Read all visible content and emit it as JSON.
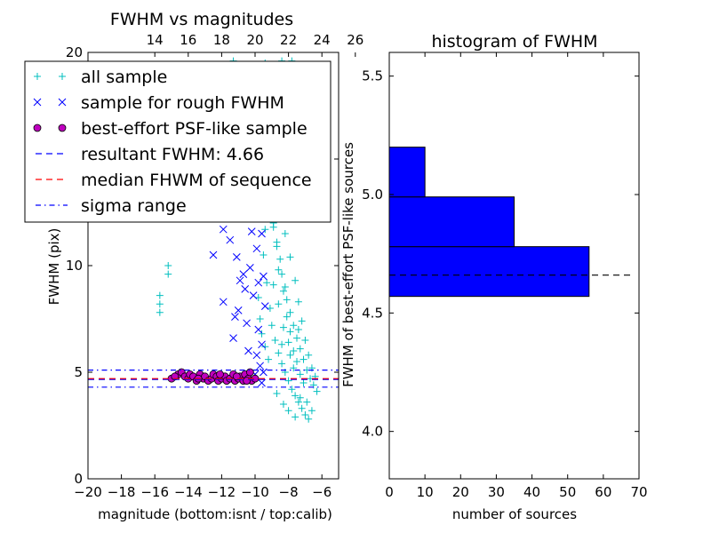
{
  "chart_data": [
    {
      "type": "scatter",
      "title": "FWHM vs magnitudes",
      "xlabel": "magnitude (bottom:isnt / top:calib)",
      "ylabel": "FWHM (pix)",
      "xlim": [
        -20,
        -5
      ],
      "ylim": [
        0,
        20
      ],
      "x_ticks": [
        "−20",
        "−18",
        "−16",
        "−14",
        "−12",
        "−10",
        "−8",
        "−6"
      ],
      "y_ticks": [
        "0",
        "5",
        "10",
        "15",
        "20"
      ],
      "top_ticks": [
        "14",
        "16",
        "18",
        "20",
        "22",
        "24",
        "26"
      ],
      "top_offset": 30,
      "grid": false,
      "legend_position": "upper-left",
      "legend": [
        {
          "label": "all sample",
          "marker": "plus",
          "color": "#00bfbf"
        },
        {
          "label": "sample for rough FWHM",
          "marker": "x",
          "color": "#0000ff"
        },
        {
          "label": "best-effort PSF-like sample",
          "marker": "circle",
          "color": "#bf00bf"
        },
        {
          "label": "resultant FWHM: 4.66",
          "marker": "dashed",
          "color": "#0000ff"
        },
        {
          "label": "median FHWM of sequence",
          "marker": "dashed",
          "color": "#ff0000"
        },
        {
          "label": "sigma range",
          "marker": "dashdot",
          "color": "#0000ff"
        }
      ],
      "series": [
        {
          "name": "all sample",
          "marker": "plus",
          "color": "#00bfbf",
          "points": [
            [
              -15.7,
              8.6
            ],
            [
              -15.7,
              8.2
            ],
            [
              -15.7,
              7.8
            ],
            [
              -15.2,
              10.0
            ],
            [
              -15.2,
              9.6
            ],
            [
              -11.9,
              19.3
            ],
            [
              -11.3,
              19.6
            ],
            [
              -10.6,
              19.4
            ],
            [
              -9.4,
              19.5
            ],
            [
              -8.4,
              19.6
            ],
            [
              -7.8,
              19.6
            ],
            [
              -9.2,
              17.5
            ],
            [
              -8.8,
              16.0
            ],
            [
              -8.6,
              15.0
            ],
            [
              -8.3,
              14.2
            ],
            [
              -8.0,
              13.4
            ],
            [
              -9.0,
              14.5
            ],
            [
              -8.9,
              12.0
            ],
            [
              -8.7,
              11.1
            ],
            [
              -8.5,
              10.3
            ],
            [
              -8.4,
              9.6
            ],
            [
              -8.2,
              9.0
            ],
            [
              -8.1,
              8.4
            ],
            [
              -7.9,
              7.8
            ],
            [
              -7.7,
              7.2
            ],
            [
              -7.5,
              6.6
            ],
            [
              -7.3,
              6.1
            ],
            [
              -7.1,
              5.6
            ],
            [
              -6.9,
              5.1
            ],
            [
              -6.7,
              4.7
            ],
            [
              -6.5,
              4.4
            ],
            [
              -9.5,
              10.5
            ],
            [
              -9.3,
              9.2
            ],
            [
              -9.1,
              8.0
            ],
            [
              -9.0,
              7.2
            ],
            [
              -8.8,
              6.5
            ],
            [
              -8.6,
              5.9
            ],
            [
              -8.4,
              5.4
            ],
            [
              -8.2,
              5.0
            ],
            [
              -8.0,
              4.6
            ],
            [
              -7.8,
              4.2
            ],
            [
              -7.6,
              3.9
            ],
            [
              -7.4,
              3.6
            ],
            [
              -7.2,
              3.3
            ],
            [
              -7.0,
              3.0
            ],
            [
              -6.8,
              2.8
            ],
            [
              -8.9,
              11.8
            ],
            [
              -8.7,
              10.9
            ],
            [
              -8.6,
              9.8
            ],
            [
              -8.3,
              8.8
            ],
            [
              -8.1,
              7.6
            ],
            [
              -7.9,
              6.9
            ],
            [
              -7.7,
              6.0
            ],
            [
              -7.5,
              5.5
            ],
            [
              -7.3,
              4.9
            ],
            [
              -7.1,
              4.5
            ],
            [
              -9.8,
              8.5
            ],
            [
              -9.7,
              7.5
            ],
            [
              -9.6,
              6.8
            ],
            [
              -9.4,
              6.2
            ],
            [
              -9.2,
              5.6
            ],
            [
              -9.6,
              12.6
            ],
            [
              -9.4,
              11.7
            ],
            [
              -9.2,
              13.3
            ],
            [
              -8.8,
              13.8
            ],
            [
              -8.5,
              12.7
            ],
            [
              -8.2,
              11.5
            ],
            [
              -7.9,
              10.4
            ],
            [
              -7.6,
              9.3
            ],
            [
              -7.4,
              8.3
            ],
            [
              -7.2,
              7.4
            ],
            [
              -7.0,
              6.5
            ],
            [
              -6.8,
              5.8
            ],
            [
              -6.6,
              5.2
            ],
            [
              -6.4,
              4.8
            ],
            [
              -6.3,
              4.1
            ],
            [
              -8.0,
              3.2
            ],
            [
              -7.6,
              2.9
            ],
            [
              -7.3,
              3.8
            ],
            [
              -6.9,
              3.6
            ],
            [
              -6.6,
              3.2
            ],
            [
              -8.7,
              4.0
            ],
            [
              -8.3,
              3.5
            ],
            [
              -7.9,
              5.8
            ],
            [
              -7.4,
              7.0
            ],
            [
              -8.4,
              6.3
            ],
            [
              -8.9,
              9.1
            ],
            [
              -8.6,
              8.2
            ],
            [
              -8.3,
              7.1
            ],
            [
              -8.0,
              6.4
            ],
            [
              -7.7,
              5.2
            ]
          ]
        },
        {
          "name": "sample for rough FWHM",
          "marker": "x",
          "color": "#0000ff",
          "points": [
            [
              -12.5,
              10.5
            ],
            [
              -11.9,
              11.7
            ],
            [
              -11.5,
              11.2
            ],
            [
              -11.1,
              10.4
            ],
            [
              -10.7,
              9.6
            ],
            [
              -11.9,
              8.3
            ],
            [
              -11.2,
              7.6
            ],
            [
              -10.6,
              8.9
            ],
            [
              -11.3,
              6.6
            ],
            [
              -10.5,
              7.3
            ],
            [
              -10.3,
              9.9
            ],
            [
              -10.1,
              8.6
            ],
            [
              -9.9,
              10.8
            ],
            [
              -9.8,
              9.2
            ],
            [
              -9.7,
              12.9
            ],
            [
              -9.6,
              11.5
            ],
            [
              -9.5,
              14.6
            ],
            [
              -9.8,
              7.0
            ],
            [
              -9.6,
              6.3
            ],
            [
              -9.4,
              8.1
            ],
            [
              -9.9,
              5.8
            ],
            [
              -9.7,
              5.3
            ],
            [
              -9.5,
              5.0
            ],
            [
              -10.4,
              6.0
            ],
            [
              -10.0,
              4.9
            ],
            [
              -9.6,
              4.5
            ],
            [
              -11.0,
              7.9
            ],
            [
              -10.2,
              11.6
            ],
            [
              -9.5,
              9.5
            ],
            [
              -10.9,
              9.3
            ]
          ]
        },
        {
          "name": "best-effort PSF-like sample",
          "marker": "circle",
          "color": "#bf00bf",
          "points": [
            [
              -15.0,
              4.7
            ],
            [
              -14.6,
              4.9
            ],
            [
              -14.4,
              5.0
            ],
            [
              -14.2,
              4.8
            ],
            [
              -14.0,
              4.7
            ],
            [
              -13.9,
              4.9
            ],
            [
              -13.7,
              4.8
            ],
            [
              -13.5,
              4.6
            ],
            [
              -13.3,
              4.9
            ],
            [
              -13.1,
              4.7
            ],
            [
              -13.0,
              4.8
            ],
            [
              -12.8,
              4.6
            ],
            [
              -12.6,
              4.7
            ],
            [
              -12.5,
              4.9
            ],
            [
              -12.3,
              4.8
            ],
            [
              -12.2,
              4.6
            ],
            [
              -12.0,
              4.7
            ],
            [
              -11.8,
              4.8
            ],
            [
              -11.7,
              4.6
            ],
            [
              -11.5,
              4.7
            ],
            [
              -11.3,
              4.9
            ],
            [
              -11.2,
              4.6
            ],
            [
              -11.0,
              4.7
            ],
            [
              -10.9,
              4.8
            ],
            [
              -10.7,
              4.6
            ],
            [
              -10.6,
              4.9
            ],
            [
              -10.4,
              4.7
            ],
            [
              -10.3,
              5.0
            ],
            [
              -10.2,
              4.6
            ],
            [
              -10.0,
              4.7
            ],
            [
              -14.8,
              4.8
            ],
            [
              -13.4,
              4.7
            ],
            [
              -12.1,
              4.9
            ],
            [
              -11.1,
              4.8
            ],
            [
              -10.5,
              4.6
            ]
          ]
        }
      ],
      "hlines": [
        {
          "name": "resultant FWHM",
          "y": 4.66,
          "style": "dashed",
          "color": "#0000ff"
        },
        {
          "name": "median FHWM of sequence",
          "y": 4.7,
          "style": "dashed",
          "color": "#ff0000"
        },
        {
          "name": "sigma range",
          "y": 5.1,
          "style": "dashdot",
          "color": "#0000ff"
        },
        {
          "name": "sigma range",
          "y": 4.3,
          "style": "dashdot",
          "color": "#0000ff"
        }
      ]
    },
    {
      "type": "bar",
      "orientation": "horizontal",
      "title": "histogram of FWHM",
      "xlabel": "number of sources",
      "ylabel": "FWHM of best-effort PSF-like sources",
      "xlim": [
        0,
        70
      ],
      "ylim": [
        3.8,
        5.6
      ],
      "x_ticks": [
        "0",
        "10",
        "20",
        "30",
        "40",
        "50",
        "60",
        "70"
      ],
      "y_ticks": [
        "4.0",
        "4.5",
        "5.0",
        "5.5"
      ],
      "grid": false,
      "color": "#0000ff",
      "bins": [
        {
          "from": 4.57,
          "to": 4.78,
          "count": 56
        },
        {
          "from": 4.78,
          "to": 4.99,
          "count": 35
        },
        {
          "from": 4.99,
          "to": 5.2,
          "count": 10
        }
      ],
      "hline": {
        "y": 4.66,
        "style": "dashed",
        "color": "#000000"
      }
    }
  ]
}
